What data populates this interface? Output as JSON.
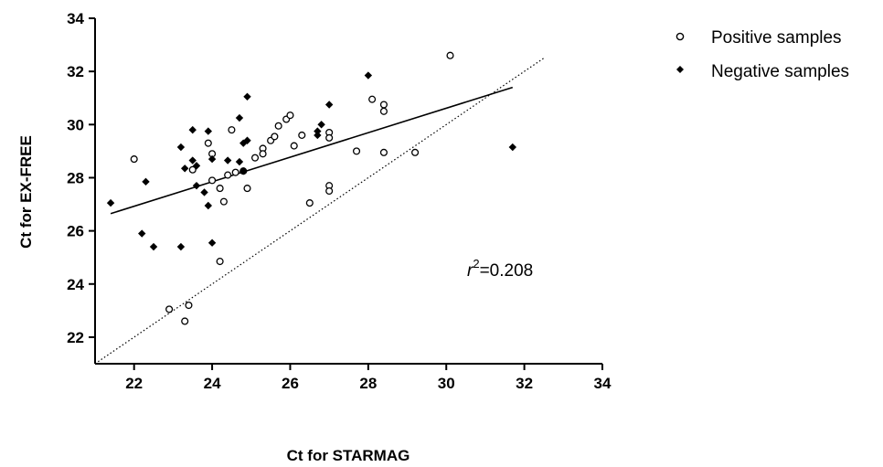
{
  "chart_data": {
    "type": "scatter",
    "xlabel": "Ct for STARMAG",
    "ylabel": "Ct for EX-FREE",
    "xlim": [
      21,
      34
    ],
    "ylim": [
      21,
      34
    ],
    "xticks": [
      22,
      24,
      26,
      28,
      30,
      32,
      34
    ],
    "yticks": [
      22,
      24,
      26,
      28,
      30,
      32,
      34
    ],
    "grid": false,
    "legend_position": "top-right",
    "annotation": {
      "r_label": "r",
      "r_power": "2",
      "r_value": "=0.208"
    },
    "series": [
      {
        "name": "Positive samples",
        "marker": "open-circle",
        "points": [
          [
            22.0,
            28.7
          ],
          [
            22.9,
            23.05
          ],
          [
            23.3,
            22.6
          ],
          [
            23.4,
            23.2
          ],
          [
            23.5,
            28.3
          ],
          [
            23.9,
            29.3
          ],
          [
            24.0,
            28.9
          ],
          [
            24.0,
            27.9
          ],
          [
            24.2,
            27.6
          ],
          [
            24.3,
            27.1
          ],
          [
            24.4,
            28.1
          ],
          [
            24.5,
            29.8
          ],
          [
            24.6,
            28.2
          ],
          [
            24.8,
            28.25
          ],
          [
            24.9,
            27.6
          ],
          [
            25.1,
            28.75
          ],
          [
            25.3,
            29.1
          ],
          [
            25.3,
            28.9
          ],
          [
            25.5,
            29.4
          ],
          [
            25.6,
            29.55
          ],
          [
            25.7,
            29.95
          ],
          [
            25.9,
            30.2
          ],
          [
            26.0,
            30.35
          ],
          [
            26.1,
            29.2
          ],
          [
            26.3,
            29.6
          ],
          [
            26.5,
            27.05
          ],
          [
            27.0,
            29.7
          ],
          [
            27.0,
            29.5
          ],
          [
            27.0,
            27.7
          ],
          [
            27.0,
            27.5
          ],
          [
            27.7,
            29.0
          ],
          [
            28.1,
            30.95
          ],
          [
            28.4,
            30.5
          ],
          [
            28.4,
            30.75
          ],
          [
            28.4,
            28.95
          ],
          [
            29.2,
            28.95
          ],
          [
            30.1,
            32.6
          ],
          [
            24.2,
            24.85
          ]
        ]
      },
      {
        "name": "Negative samples",
        "marker": "filled-diamond",
        "points": [
          [
            21.4,
            27.05
          ],
          [
            22.2,
            25.9
          ],
          [
            22.3,
            27.85
          ],
          [
            22.5,
            25.4
          ],
          [
            23.2,
            25.4
          ],
          [
            23.2,
            29.15
          ],
          [
            23.3,
            28.35
          ],
          [
            23.5,
            28.65
          ],
          [
            23.5,
            29.8
          ],
          [
            23.6,
            28.45
          ],
          [
            23.6,
            27.7
          ],
          [
            23.8,
            27.45
          ],
          [
            23.9,
            29.75
          ],
          [
            23.9,
            26.95
          ],
          [
            24.0,
            28.7
          ],
          [
            24.0,
            25.55
          ],
          [
            24.4,
            28.65
          ],
          [
            24.7,
            30.25
          ],
          [
            24.7,
            28.6
          ],
          [
            24.8,
            29.3
          ],
          [
            24.8,
            28.25
          ],
          [
            24.9,
            31.05
          ],
          [
            24.9,
            29.4
          ],
          [
            26.7,
            29.6
          ],
          [
            26.7,
            29.75
          ],
          [
            26.8,
            30.0
          ],
          [
            27.0,
            30.75
          ],
          [
            28.0,
            31.85
          ],
          [
            31.7,
            29.15
          ]
        ]
      }
    ],
    "regression_line": {
      "x": [
        21.4,
        31.7
      ],
      "y": [
        26.65,
        31.4
      ]
    },
    "identity_line": {
      "x": [
        21.0,
        32.5
      ],
      "y": [
        21.0,
        32.5
      ]
    }
  }
}
